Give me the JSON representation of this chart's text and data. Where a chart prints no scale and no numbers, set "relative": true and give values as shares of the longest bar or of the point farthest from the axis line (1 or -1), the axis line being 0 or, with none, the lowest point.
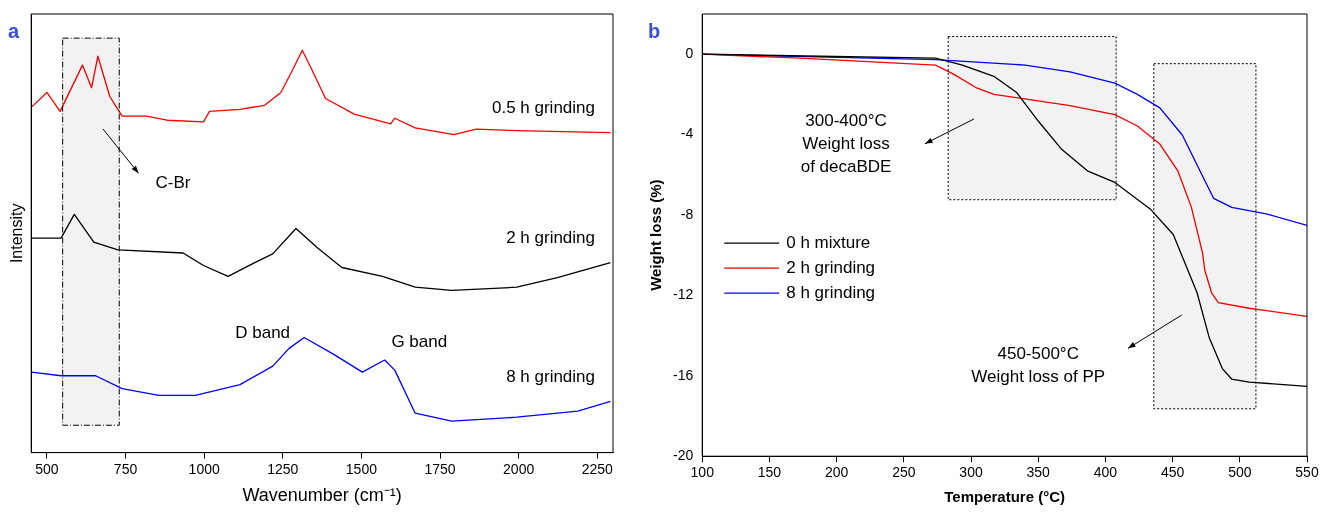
{
  "chart_data": [
    {
      "type": "line",
      "title": "a",
      "xlabel": "Wavenumber (cm⁻¹)",
      "ylabel": "Intensity",
      "relative": true,
      "grid": false,
      "legend": false,
      "xlim": [
        450,
        2300
      ],
      "xticks": [
        500,
        750,
        1000,
        1250,
        1500,
        1750,
        2000,
        2250
      ],
      "bands": [
        {
          "axis": "x",
          "from": 550,
          "to": 730,
          "color": "#000000"
        }
      ],
      "annotations": [
        "C-Br",
        "D band",
        "G band"
      ],
      "series": [
        {
          "name": "0.5 h grinding",
          "color": "#ff0000",
          "x": [
            450,
            500,
            542,
            613,
            642,
            662,
            700,
            739,
            817,
            882,
            998,
            1017,
            1114,
            1192,
            1244,
            1283,
            1312,
            1341,
            1386,
            1477,
            1593,
            1606,
            1671,
            1794,
            1865,
            1994,
            2292
          ],
          "values": [
            0.858,
            0.895,
            0.848,
            0.963,
            0.907,
            0.985,
            0.885,
            0.836,
            0.836,
            0.826,
            0.822,
            0.848,
            0.853,
            0.863,
            0.895,
            0.954,
            1,
            0.954,
            0.88,
            0.841,
            0.817,
            0.831,
            0.807,
            0.79,
            0.804,
            0.8,
            0.795
          ]
        },
        {
          "name": "2 h grinding",
          "color": "#000000",
          "x": [
            450,
            545,
            587,
            649,
            726,
            933,
            998,
            1076,
            1153,
            1218,
            1292,
            1360,
            1438,
            1567,
            1671,
            1787,
            1994,
            2123,
            2292
          ],
          "values": [
            0.533,
            0.533,
            0.592,
            0.523,
            0.504,
            0.496,
            0.465,
            0.438,
            0.469,
            0.494,
            0.557,
            0.509,
            0.46,
            0.438,
            0.411,
            0.403,
            0.411,
            0.435,
            0.472
          ]
        },
        {
          "name": "8 h grinding",
          "color": "#0000ff",
          "x": [
            450,
            545,
            655,
            739,
            856,
            972,
            1114,
            1218,
            1270,
            1318,
            1412,
            1503,
            1574,
            1606,
            1671,
            1787,
            1994,
            2188,
            2292
          ],
          "values": [
            0.2,
            0.191,
            0.191,
            0.159,
            0.142,
            0.142,
            0.169,
            0.215,
            0.259,
            0.286,
            0.244,
            0.2,
            0.23,
            0.205,
            0.098,
            0.078,
            0.088,
            0.103,
            0.127
          ]
        }
      ]
    },
    {
      "type": "line",
      "title": "b",
      "xlabel": "Temperature (°C)",
      "ylabel": "Weight loss (%)",
      "grid": false,
      "legend": "left",
      "xlim": [
        100,
        550
      ],
      "xticks": [
        100,
        150,
        200,
        250,
        300,
        350,
        400,
        450,
        500,
        550
      ],
      "ylim": [
        -20,
        2
      ],
      "yticks": [
        0,
        -4,
        -8,
        -12,
        -16,
        -20
      ],
      "bands": [
        {
          "axis": "x",
          "from": 283,
          "to": 408,
          "color": "#000000"
        },
        {
          "axis": "x",
          "from": 436,
          "to": 512,
          "color": "#000000"
        }
      ],
      "annotations": [
        "300-400°C\nWeight loss\nof decaBDE",
        "450-500°C\nWeight loss of PP"
      ],
      "series": [
        {
          "name": "0 h mixture",
          "color": "#000000",
          "x": [
            100,
            273.6,
            293.6,
            317,
            333.7,
            350.3,
            367,
            387,
            407,
            433.8,
            450.5,
            468.2,
            477.2,
            487,
            493.9,
            507,
            550
          ],
          "values": [
            0,
            -0.2,
            -0.54,
            -1.1,
            -1.89,
            -3.35,
            -4.7,
            -5.82,
            -6.38,
            -7.73,
            -8.97,
            -11.87,
            -14.09,
            -15.64,
            -16.16,
            -16.31,
            -16.53
          ]
        },
        {
          "name": "2 h grinding",
          "color": "#ff0000",
          "x": [
            100,
            173,
            273.6,
            287,
            303.6,
            317,
            340,
            373.7,
            407,
            423.8,
            440.5,
            454,
            464,
            472.2,
            474,
            479,
            484,
            507,
            550
          ],
          "values": [
            0,
            -0.2,
            -0.54,
            -0.99,
            -1.66,
            -2,
            -2.22,
            -2.56,
            -3.01,
            -3.57,
            -4.47,
            -5.82,
            -7.62,
            -9.87,
            -10.76,
            -11.87,
            -12.36,
            -12.64,
            -13.04
          ]
        },
        {
          "name": "8 h grinding",
          "color": "#0000ff",
          "x": [
            100,
            273.6,
            340.3,
            373.7,
            407,
            423.8,
            440.5,
            457.2,
            470.5,
            480.5,
            494,
            520.6,
            550
          ],
          "values": [
            0,
            -0.27,
            -0.54,
            -0.88,
            -1.44,
            -2,
            -2.67,
            -4.02,
            -5.82,
            -7.17,
            -7.62,
            -7.96,
            -8.52
          ]
        }
      ]
    }
  ]
}
